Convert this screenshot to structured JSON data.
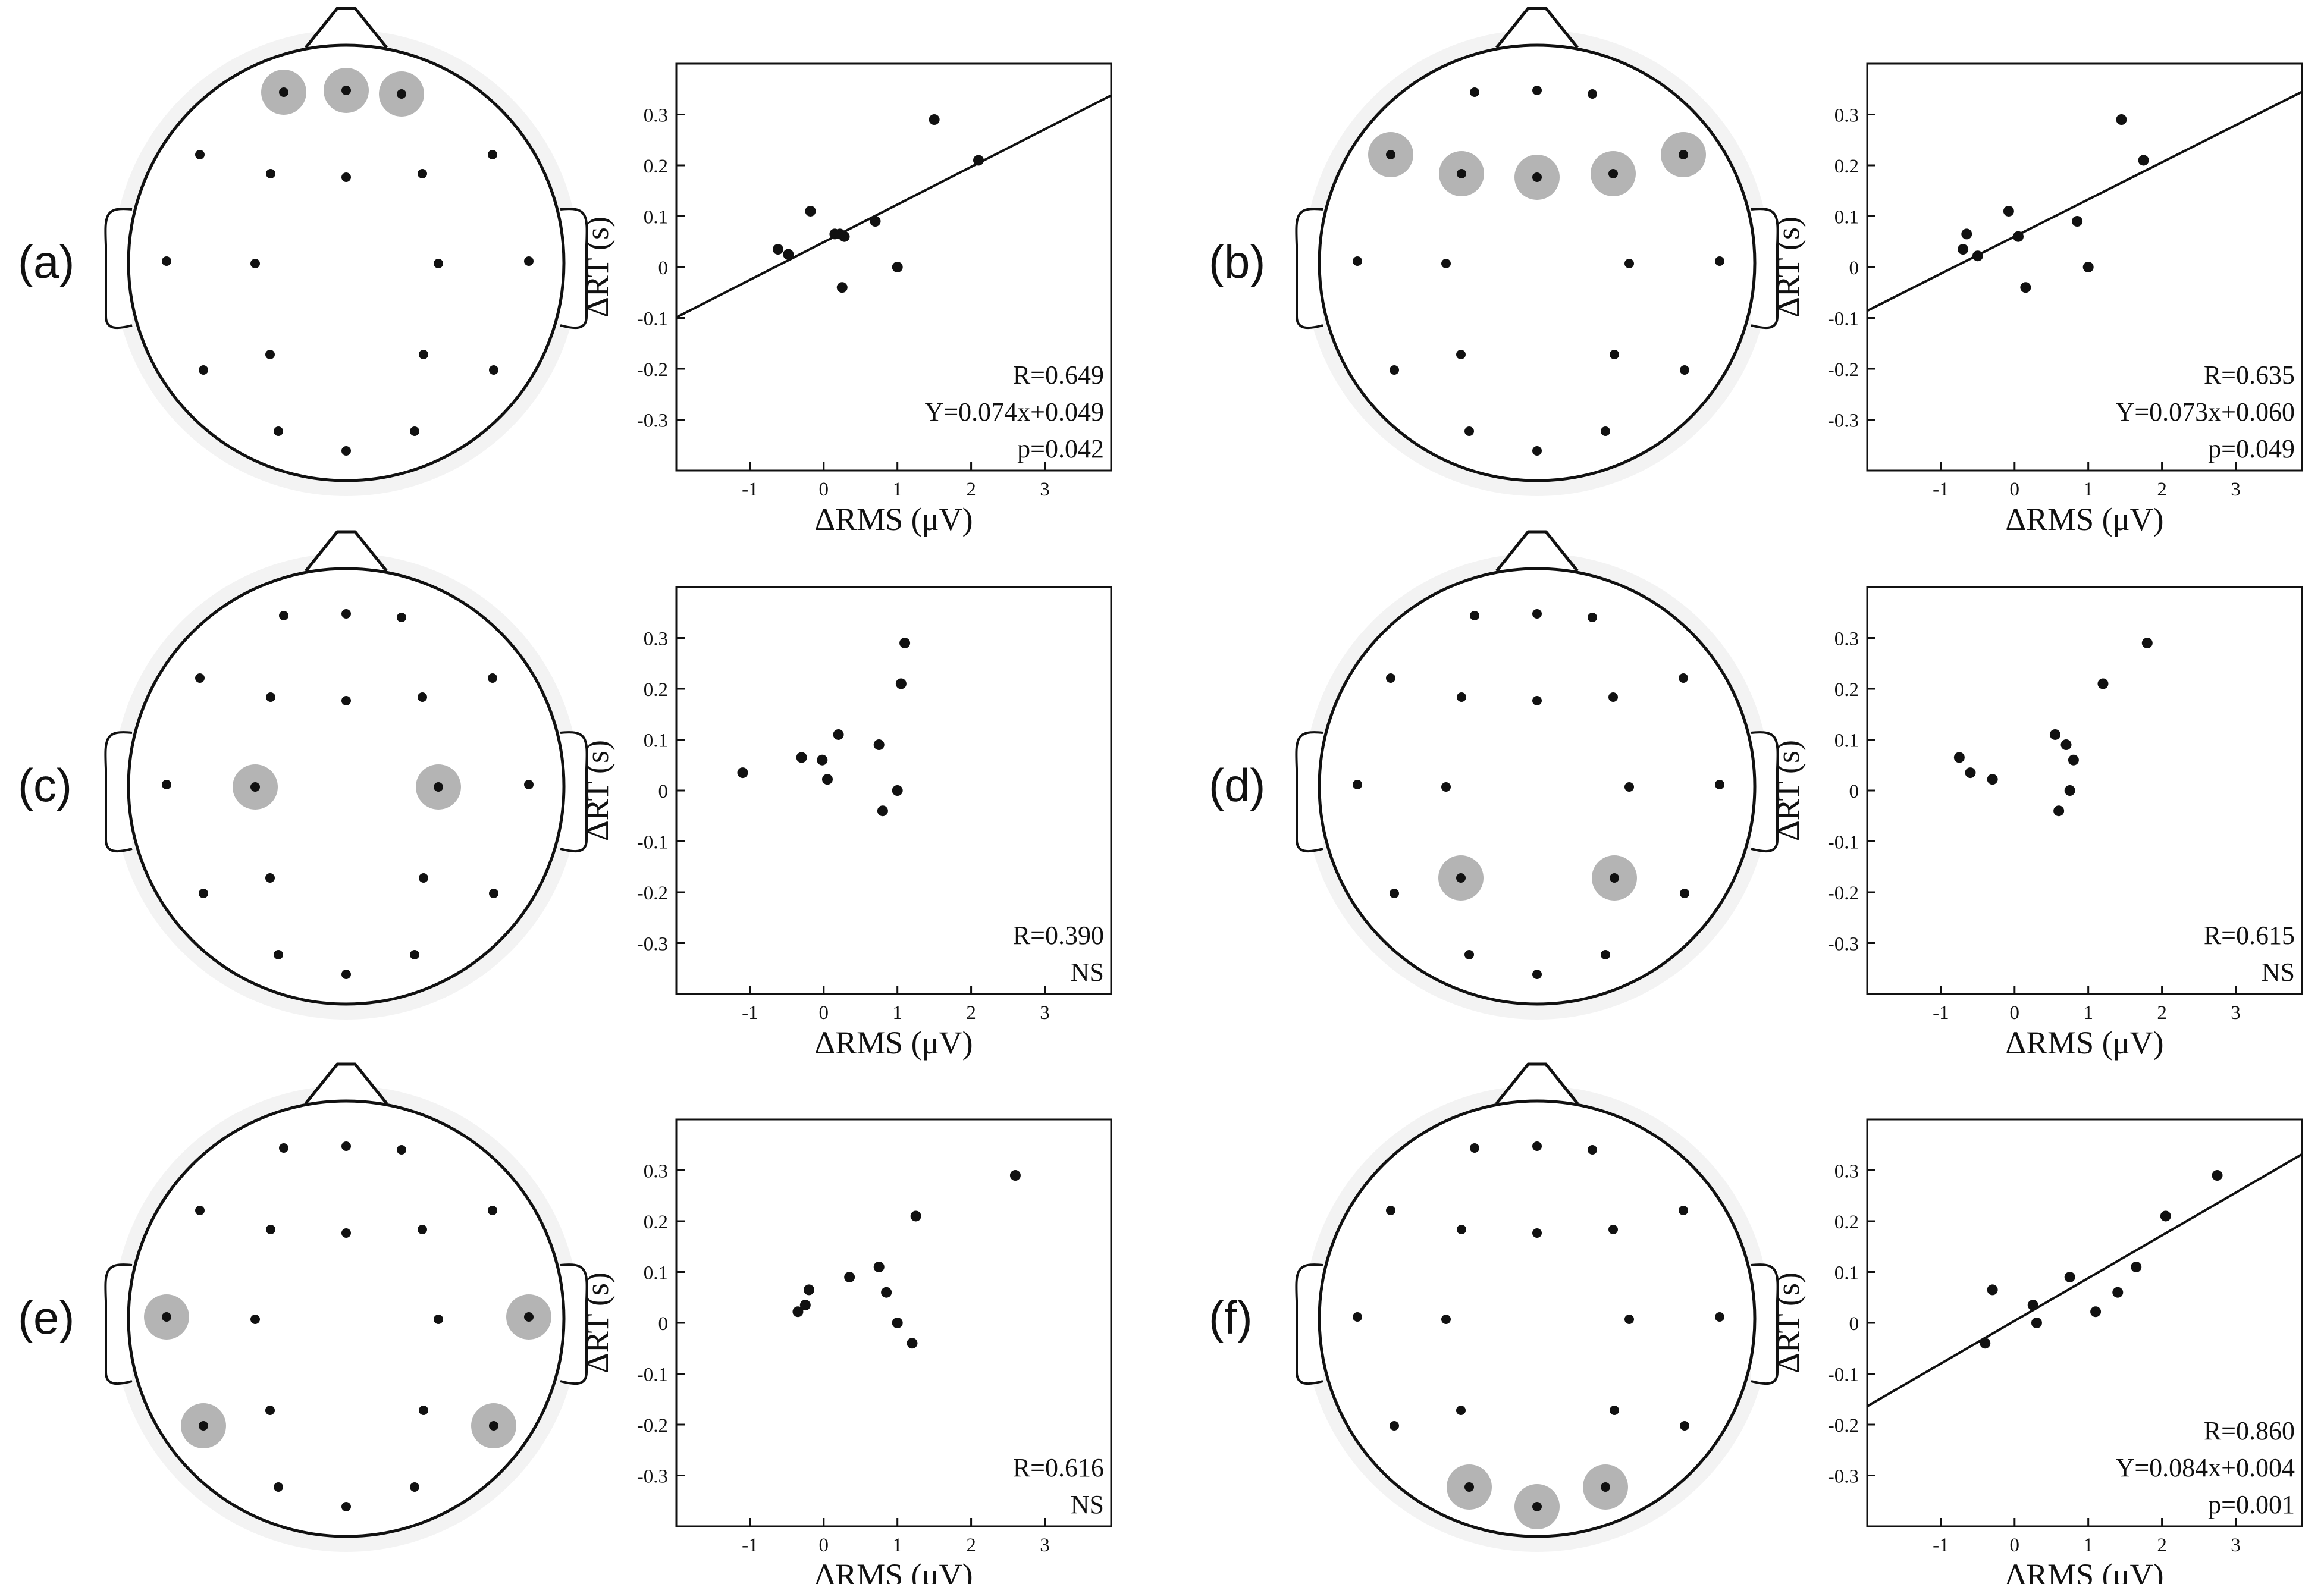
{
  "figure": {
    "colors": {
      "ink": "#111111",
      "highlight": "#b4b4b4",
      "halo": "#f3f3f3",
      "background": "#ffffff"
    },
    "electrodes": [
      "Fp1",
      "Fpz",
      "Fp2",
      "F7",
      "F3",
      "Fz",
      "F4",
      "F8",
      "T3",
      "C3",
      "C4",
      "T4",
      "T5",
      "P3",
      "Pz",
      "P4",
      "T6",
      "O1",
      "Oz",
      "O2"
    ]
  },
  "chart_data": [
    {
      "panel": "(a)",
      "type": "scatter",
      "highlighted_electrodes": [
        "Fp1",
        "Fpz",
        "Fp2"
      ],
      "x": [
        -0.62,
        -0.48,
        -0.18,
        0.15,
        0.22,
        0.28,
        0.7,
        1.0,
        1.5,
        2.1,
        0.25
      ],
      "y": [
        0.035,
        0.025,
        0.11,
        0.065,
        0.065,
        0.06,
        0.09,
        0.0,
        0.29,
        0.21,
        -0.04
      ],
      "fit": {
        "slope": 0.074,
        "intercept": 0.049
      },
      "stats": [
        "R=0.649",
        "Y=0.074x+0.049",
        "p=0.042"
      ],
      "xlabel": "ΔRMS (μV)",
      "ylabel": "ΔRT (s)",
      "xlim": [
        -2.0,
        3.9
      ],
      "ylim": [
        -0.4,
        0.4
      ],
      "xticks": [
        -1,
        0,
        1,
        2,
        3
      ],
      "yticks": [
        0.3,
        0.2,
        0.1,
        0,
        -0.1,
        -0.2,
        -0.3
      ],
      "tick_labels_x": [
        "-1",
        "0",
        "1",
        "2",
        "3"
      ],
      "tick_labels_y": [
        "0.3",
        "0.2",
        "0.1",
        "0",
        "-0.1",
        "-0.2",
        "-0.3"
      ]
    },
    {
      "panel": "(b)",
      "type": "scatter",
      "highlighted_electrodes": [
        "F7",
        "F3",
        "Fz",
        "F4",
        "F8"
      ],
      "x": [
        -0.7,
        -0.65,
        -0.5,
        -0.08,
        0.05,
        0.15,
        0.85,
        1.0,
        1.45,
        1.75
      ],
      "y": [
        0.035,
        0.065,
        0.022,
        0.11,
        0.06,
        -0.04,
        0.09,
        0.0,
        0.29,
        0.21
      ],
      "fit": {
        "slope": 0.073,
        "intercept": 0.06
      },
      "stats": [
        "R=0.635",
        "Y=0.073x+0.060",
        "p=0.049"
      ],
      "xlabel": "ΔRMS (μV)",
      "ylabel": "ΔRT (s)",
      "xlim": [
        -2.0,
        3.9
      ],
      "ylim": [
        -0.4,
        0.4
      ],
      "xticks": [
        -1,
        0,
        1,
        2,
        3
      ],
      "yticks": [
        0.3,
        0.2,
        0.1,
        0,
        -0.1,
        -0.2,
        -0.3
      ],
      "tick_labels_x": [
        "-1",
        "0",
        "1",
        "2",
        "3"
      ],
      "tick_labels_y": [
        "0.3",
        "0.2",
        "0.1",
        "0",
        "-0.1",
        "-0.2",
        "-0.3"
      ]
    },
    {
      "panel": "(c)",
      "type": "scatter",
      "highlighted_electrodes": [
        "C3",
        "C4"
      ],
      "x": [
        -1.1,
        -0.3,
        -0.02,
        0.05,
        0.2,
        0.75,
        0.8,
        1.0,
        1.05,
        1.1
      ],
      "y": [
        0.035,
        0.065,
        0.06,
        0.022,
        0.11,
        0.09,
        -0.04,
        0.0,
        0.21,
        0.29
      ],
      "fit": null,
      "stats": [
        "R=0.390",
        "NS"
      ],
      "xlabel": "ΔRMS (μV)",
      "ylabel": "ΔRT (s)",
      "xlim": [
        -2.0,
        3.9
      ],
      "ylim": [
        -0.4,
        0.4
      ],
      "xticks": [
        -1,
        0,
        1,
        2,
        3
      ],
      "yticks": [
        0.3,
        0.2,
        0.1,
        0,
        -0.1,
        -0.2,
        -0.3
      ],
      "tick_labels_x": [
        "-1",
        "0",
        "1",
        "2",
        "3"
      ],
      "tick_labels_y": [
        "0.3",
        "0.2",
        "0.1",
        "0",
        "-0.1",
        "-0.2",
        "-0.3"
      ]
    },
    {
      "panel": "(d)",
      "type": "scatter",
      "highlighted_electrodes": [
        "P3",
        "P4"
      ],
      "x": [
        -0.75,
        -0.6,
        -0.3,
        0.55,
        0.6,
        0.7,
        0.75,
        0.8,
        1.2,
        1.8
      ],
      "y": [
        0.065,
        0.035,
        0.022,
        0.11,
        -0.04,
        0.09,
        0.0,
        0.06,
        0.21,
        0.29
      ],
      "fit": null,
      "stats": [
        "R=0.615",
        "NS"
      ],
      "xlabel": "ΔRMS (μV)",
      "ylabel": "ΔRT (s)",
      "xlim": [
        -2.0,
        3.9
      ],
      "ylim": [
        -0.4,
        0.4
      ],
      "xticks": [
        -1,
        0,
        1,
        2,
        3
      ],
      "yticks": [
        0.3,
        0.2,
        0.1,
        0,
        -0.1,
        -0.2,
        -0.3
      ],
      "tick_labels_x": [
        "-1",
        "0",
        "1",
        "2",
        "3"
      ],
      "tick_labels_y": [
        "0.3",
        "0.2",
        "0.1",
        "0",
        "-0.1",
        "-0.2",
        "-0.3"
      ]
    },
    {
      "panel": "(e)",
      "type": "scatter",
      "highlighted_electrodes": [
        "T3",
        "T4",
        "T5",
        "T6"
      ],
      "x": [
        -0.35,
        -0.25,
        -0.2,
        0.35,
        0.75,
        0.85,
        1.0,
        1.2,
        1.25,
        2.6
      ],
      "y": [
        0.022,
        0.035,
        0.065,
        0.09,
        0.11,
        0.06,
        0.0,
        -0.04,
        0.21,
        0.29
      ],
      "fit": null,
      "stats": [
        "R=0.616",
        "NS"
      ],
      "xlabel": "ΔRMS (μV)",
      "ylabel": "ΔRT (s)",
      "xlim": [
        -2.0,
        3.9
      ],
      "ylim": [
        -0.4,
        0.4
      ],
      "xticks": [
        -1,
        0,
        1,
        2,
        3
      ],
      "yticks": [
        0.3,
        0.2,
        0.1,
        0,
        -0.1,
        -0.2,
        -0.3
      ],
      "tick_labels_x": [
        "-1",
        "0",
        "1",
        "2",
        "3"
      ],
      "tick_labels_y": [
        "0.3",
        "0.2",
        "0.1",
        "0",
        "-0.1",
        "-0.2",
        "-0.3"
      ]
    },
    {
      "panel": "(f)",
      "type": "scatter",
      "highlighted_electrodes": [
        "O1",
        "Oz",
        "O2"
      ],
      "x": [
        -0.4,
        -0.3,
        0.25,
        0.3,
        0.75,
        1.1,
        1.4,
        1.65,
        2.05,
        2.75
      ],
      "y": [
        -0.04,
        0.065,
        0.035,
        0.0,
        0.09,
        0.022,
        0.06,
        0.11,
        0.21,
        0.29
      ],
      "fit": {
        "slope": 0.084,
        "intercept": 0.004
      },
      "stats": [
        "R=0.860",
        "Y=0.084x+0.004",
        "p=0.001"
      ],
      "xlabel": "ΔRMS (μV)",
      "ylabel": "ΔRT (s)",
      "xlim": [
        -2.0,
        3.9
      ],
      "ylim": [
        -0.4,
        0.4
      ],
      "xticks": [
        -1,
        0,
        1,
        2,
        3
      ],
      "yticks": [
        0.3,
        0.2,
        0.1,
        0,
        -0.1,
        -0.2,
        -0.3
      ],
      "tick_labels_x": [
        "-1",
        "0",
        "1",
        "2",
        "3"
      ],
      "tick_labels_y": [
        "0.3",
        "0.2",
        "0.1",
        "0",
        "-0.1",
        "-0.2",
        "-0.3"
      ]
    }
  ]
}
